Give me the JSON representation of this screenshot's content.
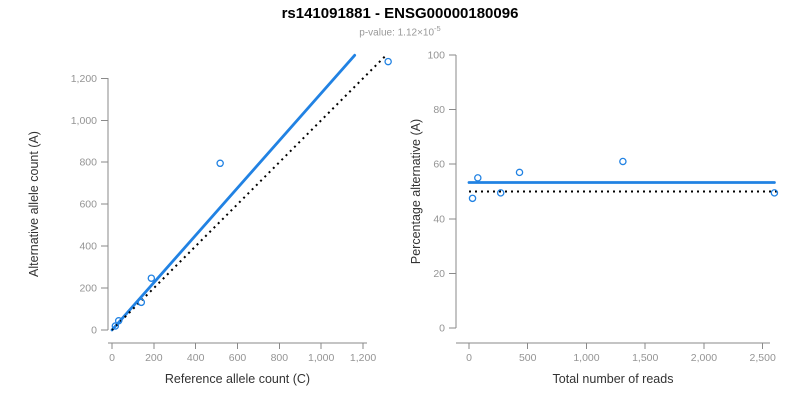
{
  "header": {
    "title": "rs141091881 - ENSG00000180096",
    "subtitle_prefix": "p-value: 1.12×10",
    "subtitle_exponent": "-5"
  },
  "colors": {
    "accent_blue": "#2182e3",
    "identity_black": "#000000",
    "axis_gray": "#8a8a8a",
    "tick_label_gray": "#949494",
    "axis_title_dark": "#333333",
    "subtitle_gray": "#999999"
  },
  "chart_data": [
    {
      "id": "allele-counts",
      "type": "scatter",
      "title": "",
      "xlabel": "Reference allele count (C)",
      "ylabel": "Alternative allele count (A)",
      "xlim": [
        0,
        1380
      ],
      "ylim": [
        0,
        1380
      ],
      "grid": false,
      "legend": "none",
      "xticks": {
        "values": [
          0,
          200,
          400,
          600,
          800,
          1000,
          1200
        ],
        "labels": [
          "0",
          "200",
          "400",
          "600",
          "800",
          "1,000",
          "1,200"
        ]
      },
      "yticks": {
        "values": [
          0,
          200,
          400,
          600,
          800,
          1000,
          1200
        ],
        "labels": [
          "0",
          "200",
          "400",
          "600",
          "800",
          "1,000",
          "1,200"
        ]
      },
      "points": [
        [
          16,
          19
        ],
        [
          32,
          44
        ],
        [
          140,
          132
        ],
        [
          188,
          247
        ],
        [
          517,
          795
        ],
        [
          1320,
          1280
        ]
      ],
      "lines": [
        {
          "name": "regression-line",
          "style": "solid",
          "color": "#2182e3",
          "from": [
            0,
            0
          ],
          "to": [
            1160,
            1310
          ]
        },
        {
          "name": "identity-line",
          "style": "dotted",
          "color": "#000000",
          "from": [
            0,
            0
          ],
          "to": [
            1310,
            1310
          ]
        }
      ]
    },
    {
      "id": "percentage-vs-reads",
      "type": "scatter",
      "title": "",
      "xlabel": "Total number of reads",
      "ylabel": "Percentage alternative (A)",
      "xlim": [
        0,
        2650
      ],
      "ylim": [
        0,
        100
      ],
      "grid": false,
      "legend": "none",
      "xticks": {
        "values": [
          0,
          500,
          1000,
          1500,
          2000,
          2500
        ],
        "labels": [
          "0",
          "500",
          "1,000",
          "1,500",
          "2,000",
          "2,500"
        ]
      },
      "yticks": {
        "values": [
          0,
          20,
          40,
          60,
          80,
          100
        ],
        "labels": [
          "0",
          "20",
          "40",
          "60",
          "80",
          "100"
        ]
      },
      "points": [
        [
          30,
          47.5
        ],
        [
          75,
          55
        ],
        [
          270,
          49.5
        ],
        [
          430,
          57
        ],
        [
          1310,
          61
        ],
        [
          2600,
          49.5
        ]
      ],
      "lines": [
        {
          "name": "mean-line",
          "style": "solid",
          "color": "#2182e3",
          "from": [
            0,
            53.3
          ],
          "to": [
            2600,
            53.3
          ]
        },
        {
          "name": "expected-line",
          "style": "dotted",
          "color": "#000000",
          "from": [
            0,
            50
          ],
          "to": [
            2650,
            50
          ]
        }
      ]
    }
  ]
}
